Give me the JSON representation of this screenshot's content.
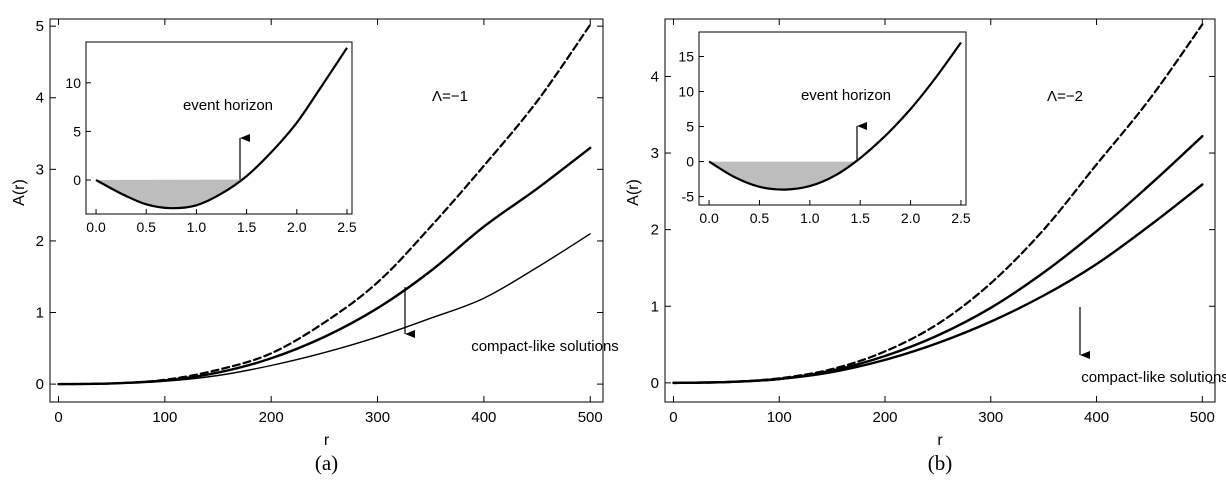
{
  "chart_data": [
    {
      "type": "line",
      "caption": "(a)",
      "xlabel": "r",
      "ylabel": "A(r)",
      "xlim": [
        -8,
        512
      ],
      "ylim": [
        -0.25,
        5.1
      ],
      "xticks": [
        0,
        100,
        200,
        300,
        400,
        500
      ],
      "yticks": [
        0,
        1,
        2,
        3,
        4,
        5
      ],
      "annotation": "Λ=−1",
      "arrow_label": "compact-like solutions",
      "x": [
        0,
        50,
        100,
        150,
        200,
        250,
        300,
        350,
        400,
        450,
        500
      ],
      "series": [
        {
          "style": "dashed",
          "values": [
            0,
            0.01,
            0.06,
            0.2,
            0.43,
            0.86,
            1.42,
            2.2,
            3.05,
            3.95,
            5.02
          ]
        },
        {
          "style": "thick",
          "values": [
            0,
            0.01,
            0.05,
            0.16,
            0.36,
            0.66,
            1.06,
            1.58,
            2.2,
            2.73,
            3.3
          ]
        },
        {
          "style": "thin",
          "values": [
            0,
            0.01,
            0.04,
            0.12,
            0.26,
            0.44,
            0.66,
            0.92,
            1.2,
            1.63,
            2.1
          ]
        }
      ],
      "inset": {
        "xlim": [
          -0.1,
          2.55
        ],
        "ylim": [
          -3.5,
          14.2
        ],
        "xticks": [
          "0.0",
          "0.5",
          "1.0",
          "1.5",
          "2.0",
          "2.5"
        ],
        "yticks": [
          0,
          5,
          10
        ],
        "arrow_label": "event horizon",
        "x": [
          0,
          0.25,
          0.5,
          0.75,
          1.0,
          1.25,
          1.5,
          1.75,
          2.0,
          2.25,
          2.5
        ],
        "values": [
          0,
          -1.4,
          -2.5,
          -2.9,
          -2.6,
          -1.4,
          0.4,
          2.9,
          5.9,
          9.7,
          13.6
        ]
      }
    },
    {
      "type": "line",
      "caption": "(b)",
      "xlabel": "r",
      "ylabel": "A(r)",
      "xlim": [
        -8,
        512
      ],
      "ylim": [
        -0.25,
        4.75
      ],
      "xticks": [
        0,
        100,
        200,
        300,
        400,
        500
      ],
      "yticks": [
        0,
        1,
        2,
        3,
        4
      ],
      "annotation": "Λ=−2",
      "arrow_label": "compact-like solutions",
      "x": [
        0,
        50,
        100,
        150,
        200,
        250,
        300,
        350,
        400,
        450,
        500
      ],
      "series": [
        {
          "style": "dashed",
          "values": [
            0,
            0.01,
            0.06,
            0.18,
            0.41,
            0.77,
            1.3,
            2.0,
            2.85,
            3.7,
            4.68
          ]
        },
        {
          "style": "thick",
          "values": [
            0,
            0.01,
            0.05,
            0.16,
            0.35,
            0.62,
            0.98,
            1.44,
            1.98,
            2.58,
            3.22
          ]
        },
        {
          "style": "thick",
          "values": [
            0,
            0.01,
            0.05,
            0.14,
            0.3,
            0.52,
            0.8,
            1.14,
            1.55,
            2.05,
            2.59
          ]
        }
      ],
      "inset": {
        "xlim": [
          -0.1,
          2.55
        ],
        "ylim": [
          -6.2,
          18.5
        ],
        "xticks": [
          "0.0",
          "0.5",
          "1.0",
          "1.5",
          "2.0",
          "2.5"
        ],
        "yticks": [
          -5,
          0,
          5,
          10,
          15
        ],
        "arrow_label": "event horizon",
        "x": [
          0,
          0.25,
          0.5,
          0.75,
          1.0,
          1.25,
          1.5,
          1.75,
          2.0,
          2.25,
          2.5
        ],
        "values": [
          0,
          -2.2,
          -3.6,
          -4.0,
          -3.5,
          -2.0,
          0.5,
          3.7,
          7.5,
          12.0,
          17.0
        ]
      }
    }
  ]
}
